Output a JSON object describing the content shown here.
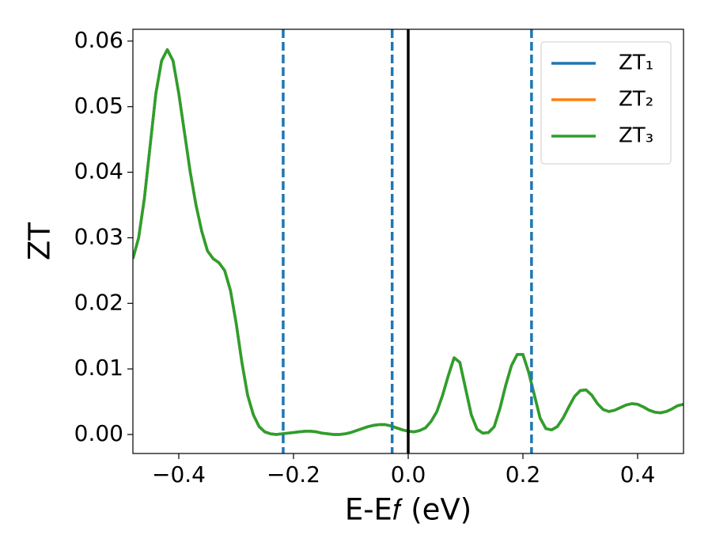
{
  "chart_data": {
    "type": "line",
    "xlabel": "E-E𝑓 (eV)",
    "ylabel": "ZT",
    "x": [
      -0.48,
      -0.47,
      -0.46,
      -0.45,
      -0.44,
      -0.43,
      -0.42,
      -0.41,
      -0.4,
      -0.39,
      -0.38,
      -0.37,
      -0.36,
      -0.35,
      -0.34,
      -0.33,
      -0.32,
      -0.31,
      -0.3,
      -0.29,
      -0.28,
      -0.27,
      -0.26,
      -0.25,
      -0.24,
      -0.23,
      -0.22,
      -0.21,
      -0.2,
      -0.19,
      -0.18,
      -0.17,
      -0.16,
      -0.15,
      -0.14,
      -0.13,
      -0.12,
      -0.11,
      -0.1,
      -0.09,
      -0.08,
      -0.07,
      -0.06,
      -0.05,
      -0.04,
      -0.03,
      -0.02,
      -0.01,
      0.0,
      0.01,
      0.02,
      0.03,
      0.04,
      0.05,
      0.06,
      0.07,
      0.08,
      0.09,
      0.1,
      0.11,
      0.12,
      0.13,
      0.14,
      0.15,
      0.16,
      0.17,
      0.18,
      0.19,
      0.2,
      0.21,
      0.22,
      0.23,
      0.24,
      0.25,
      0.26,
      0.27,
      0.28,
      0.29,
      0.3,
      0.31,
      0.32,
      0.33,
      0.34,
      0.35,
      0.36,
      0.37,
      0.38,
      0.39,
      0.4,
      0.41,
      0.42,
      0.43,
      0.44,
      0.45,
      0.46,
      0.47,
      0.48
    ],
    "series": [
      {
        "name": "ZT₁",
        "color": "#1f77b4",
        "values": [
          0.0268,
          0.03,
          0.036,
          0.044,
          0.052,
          0.057,
          0.0587,
          0.057,
          0.052,
          0.046,
          0.04,
          0.035,
          0.031,
          0.028,
          0.0268,
          0.0262,
          0.025,
          0.022,
          0.017,
          0.011,
          0.006,
          0.003,
          0.0012,
          0.0004,
          0.0001,
          0.0,
          0.0001,
          0.0002,
          0.0003,
          0.0004,
          0.0005,
          0.0005,
          0.0004,
          0.0002,
          0.0001,
          0.0,
          0.0,
          0.0001,
          0.0003,
          0.0006,
          0.0009,
          0.0012,
          0.0014,
          0.0015,
          0.0015,
          0.0013,
          0.001,
          0.0007,
          0.0005,
          0.0004,
          0.0006,
          0.001,
          0.002,
          0.0035,
          0.006,
          0.009,
          0.0117,
          0.011,
          0.007,
          0.003,
          0.0008,
          0.0002,
          0.0003,
          0.0012,
          0.004,
          0.0075,
          0.0105,
          0.0122,
          0.0122,
          0.0095,
          0.006,
          0.0025,
          0.0009,
          0.0007,
          0.0012,
          0.0025,
          0.0042,
          0.0058,
          0.0067,
          0.0068,
          0.006,
          0.0047,
          0.0038,
          0.0035,
          0.0037,
          0.0041,
          0.0045,
          0.0047,
          0.0046,
          0.0042,
          0.0037,
          0.0034,
          0.0033,
          0.0035,
          0.0039,
          0.0044,
          0.0046
        ]
      },
      {
        "name": "ZT₂",
        "color": "#ff7f0e",
        "values": [
          0.0268,
          0.03,
          0.036,
          0.044,
          0.052,
          0.057,
          0.0587,
          0.057,
          0.052,
          0.046,
          0.04,
          0.035,
          0.031,
          0.028,
          0.0268,
          0.0262,
          0.025,
          0.022,
          0.017,
          0.011,
          0.006,
          0.003,
          0.0012,
          0.0004,
          0.0001,
          0.0,
          0.0001,
          0.0002,
          0.0003,
          0.0004,
          0.0005,
          0.0005,
          0.0004,
          0.0002,
          0.0001,
          0.0,
          0.0,
          0.0001,
          0.0003,
          0.0006,
          0.0009,
          0.0012,
          0.0014,
          0.0015,
          0.0015,
          0.0013,
          0.001,
          0.0007,
          0.0005,
          0.0004,
          0.0006,
          0.001,
          0.002,
          0.0035,
          0.006,
          0.009,
          0.0117,
          0.011,
          0.007,
          0.003,
          0.0008,
          0.0002,
          0.0003,
          0.0012,
          0.004,
          0.0075,
          0.0105,
          0.0122,
          0.0122,
          0.0095,
          0.006,
          0.0025,
          0.0009,
          0.0007,
          0.0012,
          0.0025,
          0.0042,
          0.0058,
          0.0067,
          0.0068,
          0.006,
          0.0047,
          0.0038,
          0.0035,
          0.0037,
          0.0041,
          0.0045,
          0.0047,
          0.0046,
          0.0042,
          0.0037,
          0.0034,
          0.0033,
          0.0035,
          0.0039,
          0.0044,
          0.0046
        ]
      },
      {
        "name": "ZT₃",
        "color": "#2ca02c",
        "values": [
          0.0268,
          0.03,
          0.036,
          0.044,
          0.052,
          0.057,
          0.0587,
          0.057,
          0.052,
          0.046,
          0.04,
          0.035,
          0.031,
          0.028,
          0.0268,
          0.0262,
          0.025,
          0.022,
          0.017,
          0.011,
          0.006,
          0.003,
          0.0012,
          0.0004,
          0.0001,
          0.0,
          0.0001,
          0.0002,
          0.0003,
          0.0004,
          0.0005,
          0.0005,
          0.0004,
          0.0002,
          0.0001,
          0.0,
          0.0,
          0.0001,
          0.0003,
          0.0006,
          0.0009,
          0.0012,
          0.0014,
          0.0015,
          0.0015,
          0.0013,
          0.001,
          0.0007,
          0.0005,
          0.0004,
          0.0006,
          0.001,
          0.002,
          0.0035,
          0.006,
          0.009,
          0.0117,
          0.011,
          0.007,
          0.003,
          0.0008,
          0.0002,
          0.0003,
          0.0012,
          0.004,
          0.0075,
          0.0105,
          0.0122,
          0.0122,
          0.0095,
          0.006,
          0.0025,
          0.0009,
          0.0007,
          0.0012,
          0.0025,
          0.0042,
          0.0058,
          0.0067,
          0.0068,
          0.006,
          0.0047,
          0.0038,
          0.0035,
          0.0037,
          0.0041,
          0.0045,
          0.0047,
          0.0046,
          0.0042,
          0.0037,
          0.0034,
          0.0033,
          0.0035,
          0.0039,
          0.0044,
          0.0046
        ]
      }
    ],
    "vlines": [
      {
        "x": -0.218,
        "color": "#1f77b4",
        "style": "dashed"
      },
      {
        "x": -0.028,
        "color": "#1f77b4",
        "style": "dashed"
      },
      {
        "x": 0.0,
        "color": "#000000",
        "style": "solid"
      },
      {
        "x": 0.215,
        "color": "#1f77b4",
        "style": "dashed"
      }
    ],
    "xlim": [
      -0.48,
      0.48
    ],
    "ylim": [
      -0.0029,
      0.0618
    ],
    "xticks": [
      {
        "value": -0.4,
        "label": "−0.4"
      },
      {
        "value": -0.2,
        "label": "−0.2"
      },
      {
        "value": 0,
        "label": "0.0"
      },
      {
        "value": 0.2,
        "label": "0.2"
      },
      {
        "value": 0.4,
        "label": "0.4"
      }
    ],
    "yticks": [
      {
        "value": 0,
        "label": "0.00"
      },
      {
        "value": 0.01,
        "label": "0.01"
      },
      {
        "value": 0.02,
        "label": "0.02"
      },
      {
        "value": 0.03,
        "label": "0.03"
      },
      {
        "value": 0.04,
        "label": "0.04"
      },
      {
        "value": 0.05,
        "label": "0.05"
      },
      {
        "value": 0.06,
        "label": "0.06"
      }
    ],
    "legend": "upper right",
    "grid": false
  }
}
